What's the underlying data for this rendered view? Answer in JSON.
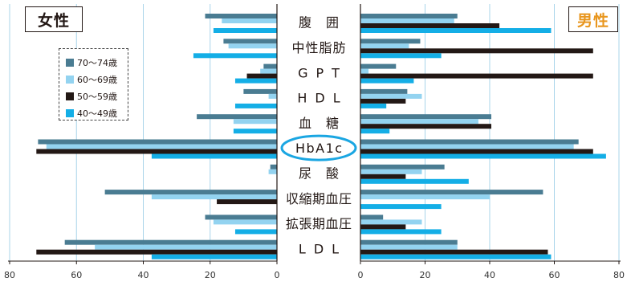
{
  "panels": {
    "female": {
      "title": "女性"
    },
    "male": {
      "title": "男性"
    }
  },
  "colors": {
    "grid": "#a9d4ea",
    "axis": "#231815",
    "highlight": "#1aa6e2",
    "female_title": "#231815",
    "male_title": "#e8961e"
  },
  "chart_data": {
    "type": "bar",
    "orientation": "horizontal",
    "categories": [
      "腹　囲",
      "中性脂肪",
      "GPT",
      "HDL",
      "血　糖",
      "HbA1c",
      "尿　酸",
      "収縮期血圧",
      "拡張期血圧",
      "LDL"
    ],
    "highlight_index": 5,
    "series": [
      {
        "name": "70〜74歳",
        "color": "#4a7c92",
        "female": [
          21.5,
          16,
          4,
          10,
          24,
          71.5,
          2,
          51.5,
          21.5,
          63.5
        ],
        "male": [
          30,
          18.5,
          11,
          14.5,
          40.5,
          67.5,
          26,
          56.5,
          7,
          30
        ]
      },
      {
        "name": "60〜69歳",
        "color": "#93d3f0",
        "female": [
          16.5,
          14.5,
          5,
          2.5,
          13,
          69,
          2.5,
          37.5,
          19,
          54.5
        ],
        "male": [
          29,
          15,
          2.5,
          19,
          36.5,
          66,
          19,
          40,
          19,
          30
        ]
      },
      {
        "name": "50〜59歳",
        "color": "#231815",
        "female": [
          0,
          0,
          9,
          0,
          0,
          72,
          0,
          18,
          0,
          72
        ],
        "male": [
          43,
          72,
          72,
          14,
          40.5,
          72,
          14,
          0,
          14,
          58
        ]
      },
      {
        "name": "40〜49歳",
        "color": "#14aee6",
        "female": [
          19,
          25,
          12.5,
          12.5,
          13,
          37.5,
          0,
          0,
          12.5,
          37.5
        ],
        "male": [
          59,
          25,
          16.5,
          8,
          9,
          76,
          33.5,
          25,
          25,
          59
        ]
      }
    ],
    "xticks": [
      0,
      20,
      40,
      60,
      80
    ],
    "xlim": [
      0,
      80
    ],
    "grid": true,
    "legend": {
      "placement": "top-left"
    }
  }
}
